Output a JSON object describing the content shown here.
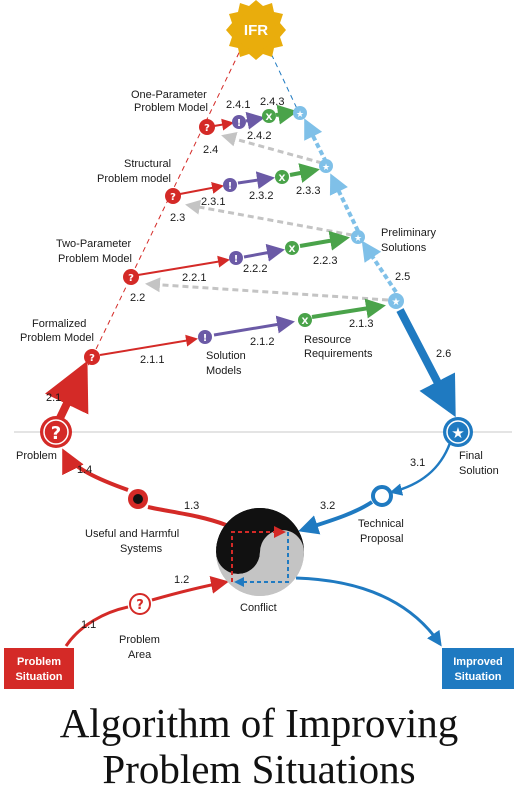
{
  "title": {
    "line1": "Algorithm of Improving",
    "line2": "Problem Situations"
  },
  "ifr_label": "IFR",
  "levels": {
    "one_param": {
      "label_l1": "One-Parameter",
      "label_l2": "Problem Model",
      "nums": [
        "2.4",
        "2.4.1",
        "2.4.2",
        "2.4.3"
      ]
    },
    "structural": {
      "label_l1": "Structural",
      "label_l2": "Problem model",
      "nums": [
        "2.3",
        "2.3.1",
        "2.3.2",
        "2.3.3"
      ]
    },
    "two_param": {
      "label_l1": "Two-Parameter",
      "label_l2": "Problem Model",
      "nums": [
        "2.2",
        "2.2.1",
        "2.2.2",
        "2.2.3"
      ]
    },
    "formalized": {
      "label_l1": "Formalized",
      "label_l2": "Problem Model",
      "nums": [
        "2.1.1",
        "2.1.2",
        "2.1.3"
      ]
    }
  },
  "labels": {
    "preliminary_l1": "Preliminary",
    "preliminary_l2": "Solutions",
    "solution_models_l1": "Solution",
    "solution_models_l2": "Models",
    "resource_l1": "Resource",
    "resource_l2": "Requirements",
    "problem": "Problem",
    "final_l1": "Final",
    "final_l2": "Solution",
    "useful_l1": "Useful and Harmful",
    "useful_l2": "Systems",
    "technical_l1": "Technical",
    "technical_l2": "Proposal",
    "conflict": "Conflict",
    "area_l1": "Problem",
    "area_l2": "Area"
  },
  "nums": {
    "n21": "2.1",
    "n25": "2.5",
    "n26": "2.6",
    "n31": "3.1",
    "n32": "3.2",
    "n11": "1.1",
    "n12": "1.2",
    "n13": "1.3",
    "n14": "1.4"
  },
  "boxes": {
    "problem_situation_l1": "Problem",
    "problem_situation_l2": "Situation",
    "improved_situation_l1": "Improved",
    "improved_situation_l2": "Situation"
  },
  "glyphs": {
    "question": "?",
    "exclaim": "!",
    "cross": "X",
    "star": "★"
  },
  "colors": {
    "red": "#d42a27",
    "blue": "#1f7ac1",
    "light_blue": "#7fc0e8",
    "purple": "#6b5aa6",
    "green": "#4aa34a",
    "gold": "#e9ad0c",
    "gray": "#c4c4c4"
  }
}
